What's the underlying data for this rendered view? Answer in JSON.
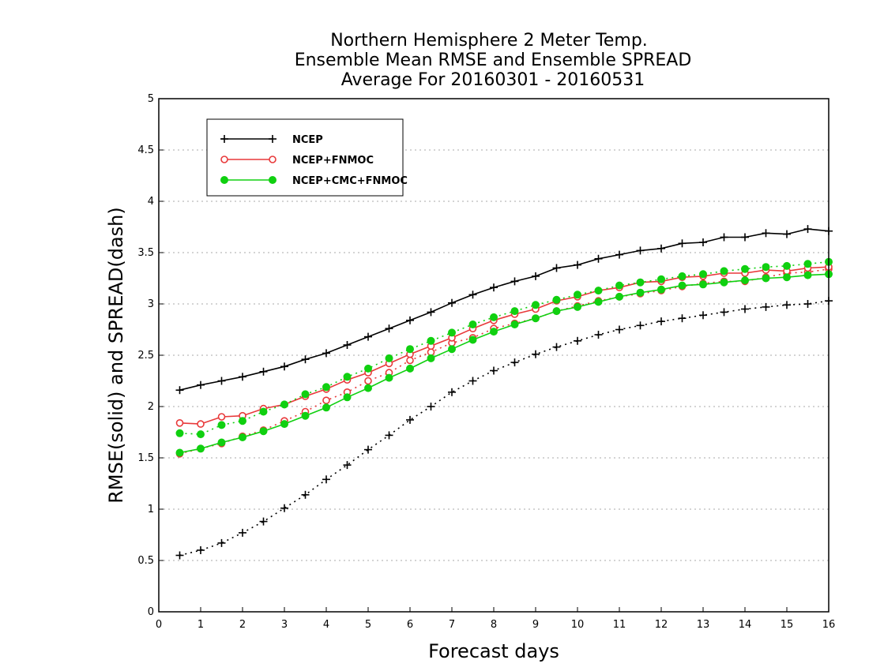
{
  "chart_data": {
    "type": "line",
    "title_lines": [
      "Northern Hemisphere 2 Meter Temp.",
      "Ensemble Mean RMSE and Ensemble SPREAD",
      "Average For 20160301 - 20160531"
    ],
    "xlabel": "Forecast days",
    "ylabel": "RMSE(solid) and SPREAD(dash)",
    "xlim": [
      0,
      16
    ],
    "ylim": [
      0,
      5
    ],
    "xticks": [
      "0",
      "1",
      "2",
      "3",
      "4",
      "5",
      "6",
      "7",
      "8",
      "9",
      "10",
      "11",
      "12",
      "13",
      "14",
      "15",
      "16"
    ],
    "yticks": [
      "0",
      "0.5",
      "1",
      "1.5",
      "2",
      "2.5",
      "3",
      "3.5",
      "4",
      "4.5",
      "5"
    ],
    "grid": true,
    "legend_position": "top-left",
    "x": [
      0.5,
      1,
      1.5,
      2,
      2.5,
      3,
      3.5,
      4,
      4.5,
      5,
      5.5,
      6,
      6.5,
      7,
      7.5,
      8,
      8.5,
      9,
      9.5,
      10,
      10.5,
      11,
      11.5,
      12,
      12.5,
      13,
      13.5,
      14,
      14.5,
      15,
      15.5,
      16
    ],
    "series": [
      {
        "name": "NCEP",
        "color": "#000000",
        "marker": "plus",
        "rmse": [
          2.16,
          2.21,
          2.25,
          2.29,
          2.34,
          2.39,
          2.46,
          2.52,
          2.6,
          2.68,
          2.76,
          2.84,
          2.92,
          3.01,
          3.09,
          3.16,
          3.22,
          3.27,
          3.35,
          3.38,
          3.44,
          3.48,
          3.52,
          3.54,
          3.59,
          3.6,
          3.65,
          3.65,
          3.69,
          3.68,
          3.73,
          3.71
        ],
        "spread": [
          0.55,
          0.6,
          0.67,
          0.77,
          0.88,
          1.01,
          1.14,
          1.29,
          1.43,
          1.58,
          1.72,
          1.87,
          2.0,
          2.14,
          2.25,
          2.35,
          2.43,
          2.51,
          2.58,
          2.64,
          2.7,
          2.75,
          2.79,
          2.83,
          2.86,
          2.89,
          2.92,
          2.95,
          2.97,
          2.99,
          3.0,
          3.03
        ]
      },
      {
        "name": "NCEP+FNMOC",
        "color": "#e8393a",
        "marker": "open-circle",
        "rmse": [
          1.84,
          1.83,
          1.9,
          1.91,
          1.98,
          2.02,
          2.1,
          2.17,
          2.26,
          2.33,
          2.42,
          2.51,
          2.59,
          2.67,
          2.76,
          2.84,
          2.9,
          2.95,
          3.03,
          3.07,
          3.13,
          3.16,
          3.21,
          3.22,
          3.26,
          3.27,
          3.3,
          3.3,
          3.33,
          3.32,
          3.35,
          3.36
        ],
        "spread": [
          1.54,
          1.59,
          1.64,
          1.71,
          1.77,
          1.86,
          1.95,
          2.06,
          2.14,
          2.25,
          2.33,
          2.45,
          2.53,
          2.62,
          2.67,
          2.76,
          2.81,
          2.86,
          2.93,
          2.98,
          3.03,
          3.07,
          3.1,
          3.13,
          3.17,
          3.2,
          3.22,
          3.22,
          3.26,
          3.3,
          3.31,
          3.34
        ]
      },
      {
        "name": "NCEP+CMC+FNMOC",
        "color": "#10d010",
        "marker": "filled-circle",
        "rmse": [
          1.55,
          1.59,
          1.65,
          1.7,
          1.76,
          1.83,
          1.91,
          1.99,
          2.09,
          2.18,
          2.28,
          2.37,
          2.47,
          2.56,
          2.65,
          2.73,
          2.8,
          2.86,
          2.93,
          2.97,
          3.02,
          3.07,
          3.11,
          3.14,
          3.18,
          3.19,
          3.21,
          3.23,
          3.25,
          3.26,
          3.28,
          3.29
        ],
        "spread": [
          1.74,
          1.73,
          1.82,
          1.86,
          1.95,
          2.02,
          2.12,
          2.19,
          2.29,
          2.37,
          2.47,
          2.56,
          2.64,
          2.72,
          2.8,
          2.87,
          2.93,
          2.99,
          3.04,
          3.09,
          3.13,
          3.18,
          3.21,
          3.24,
          3.27,
          3.29,
          3.32,
          3.34,
          3.36,
          3.37,
          3.39,
          3.41
        ]
      }
    ]
  }
}
